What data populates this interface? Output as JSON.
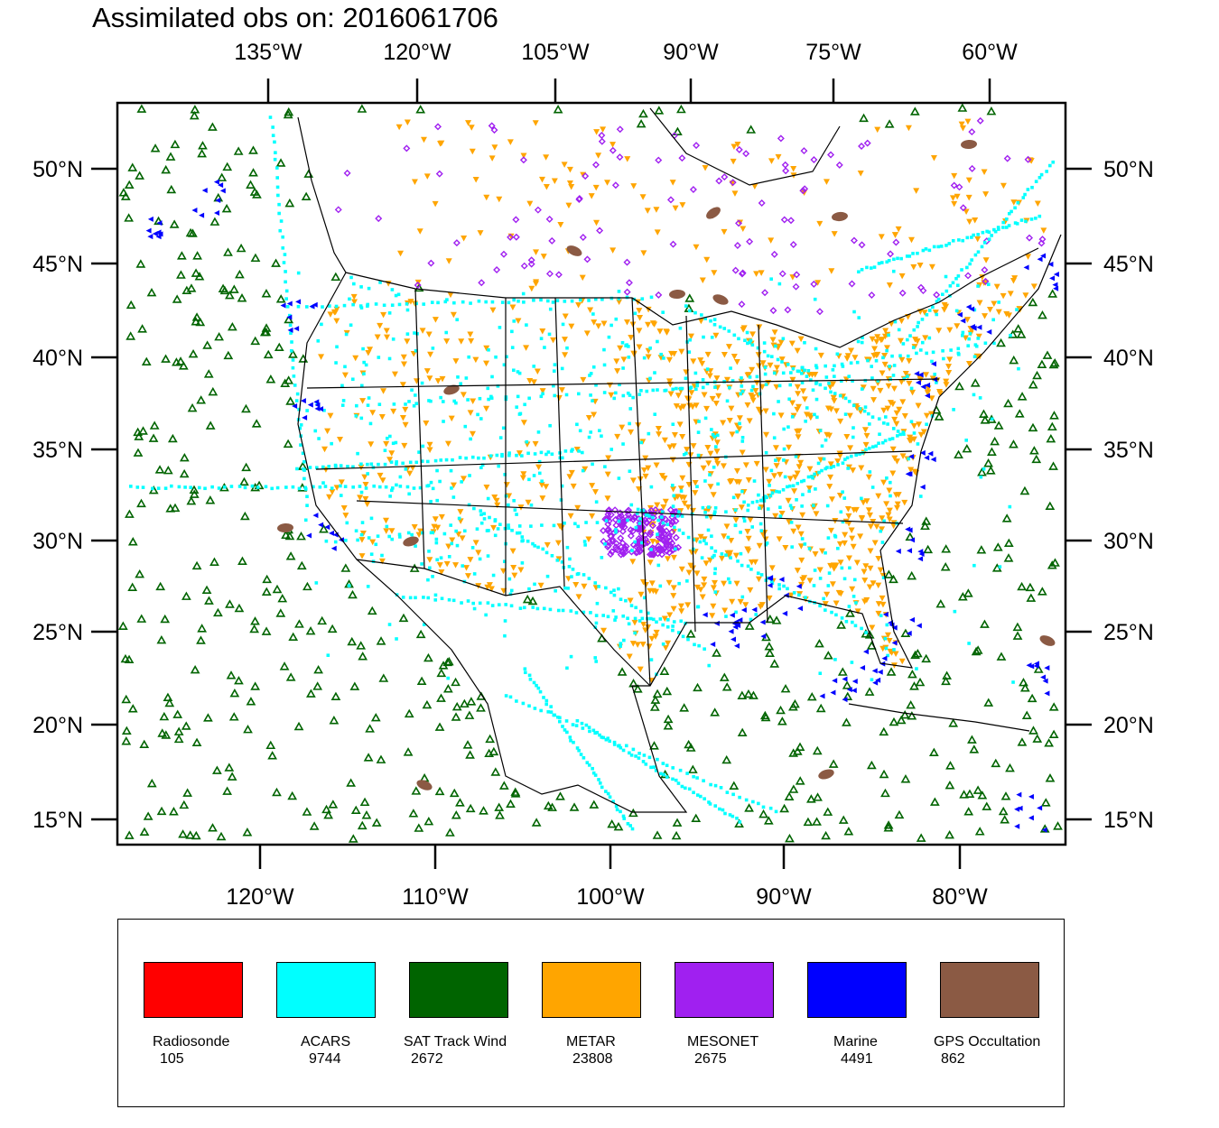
{
  "title": "Assimilated obs on: 2016061706",
  "top_lon_labels": [
    "135°W",
    "120°W",
    "105°W",
    "90°W",
    "75°W",
    "60°W"
  ],
  "bottom_lon_labels": [
    "120°W",
    "110°W",
    "100°W",
    "90°W",
    "80°W"
  ],
  "lat_labels": [
    "50°N",
    "45°N",
    "40°N",
    "35°N",
    "30°N",
    "25°N",
    "20°N",
    "15°N"
  ],
  "colors": {
    "radiosonde": "#ff0000",
    "acars": "#00ffff",
    "sat_track_wind": "#006400",
    "metar": "#ffa500",
    "mesonet": "#a020f0",
    "marine": "#0000ff",
    "gps_occultation": "#8b5a44",
    "map_lines": "#000000"
  },
  "legend": [
    {
      "name": "Radiosonde",
      "count": "105",
      "color": "#ff0000"
    },
    {
      "name": "ACARS",
      "count": "9744",
      "color": "#00ffff"
    },
    {
      "name": "SAT Track Wind",
      "count": "2672",
      "color": "#006400"
    },
    {
      "name": "METAR",
      "count": "23808",
      "color": "#ffa500"
    },
    {
      "name": "MESONET",
      "count": "2675",
      "color": "#a020f0"
    },
    {
      "name": "Marine",
      "count": "4491",
      "color": "#0000ff"
    },
    {
      "name": "GPS Occultation",
      "count": "862",
      "color": "#8b5a44"
    }
  ]
}
